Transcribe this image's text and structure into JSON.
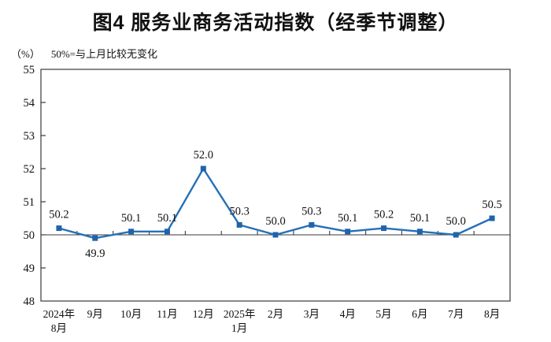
{
  "chart_data": {
    "type": "line",
    "title": "图4 服务业商务活动指数（经季节调整）",
    "unit_label": "（%）",
    "note": "50%=与上月比较无变化",
    "categories": [
      [
        "2024年",
        "8月"
      ],
      [
        "9月"
      ],
      [
        "10月"
      ],
      [
        "11月"
      ],
      [
        "12月"
      ],
      [
        "2025年",
        "1月"
      ],
      [
        "2月"
      ],
      [
        "3月"
      ],
      [
        "4月"
      ],
      [
        "5月"
      ],
      [
        "6月"
      ],
      [
        "7月"
      ],
      [
        "8月"
      ]
    ],
    "values": [
      50.2,
      49.9,
      50.1,
      50.1,
      52.0,
      50.3,
      50.0,
      50.3,
      50.1,
      50.2,
      50.1,
      50.0,
      50.5
    ],
    "label_decimals": 1,
    "label_below_indices": [
      1
    ],
    "ylim": [
      48,
      55
    ],
    "ytick_step": 1,
    "yticks": [
      48,
      49,
      50,
      51,
      52,
      53,
      54,
      55
    ],
    "reference_line": 50,
    "grid": false,
    "legend": "none",
    "line_color": "#2470b8",
    "marker_color": "#1f63ac",
    "axis_color": "#3a3a3a",
    "text_color": "#111111"
  }
}
